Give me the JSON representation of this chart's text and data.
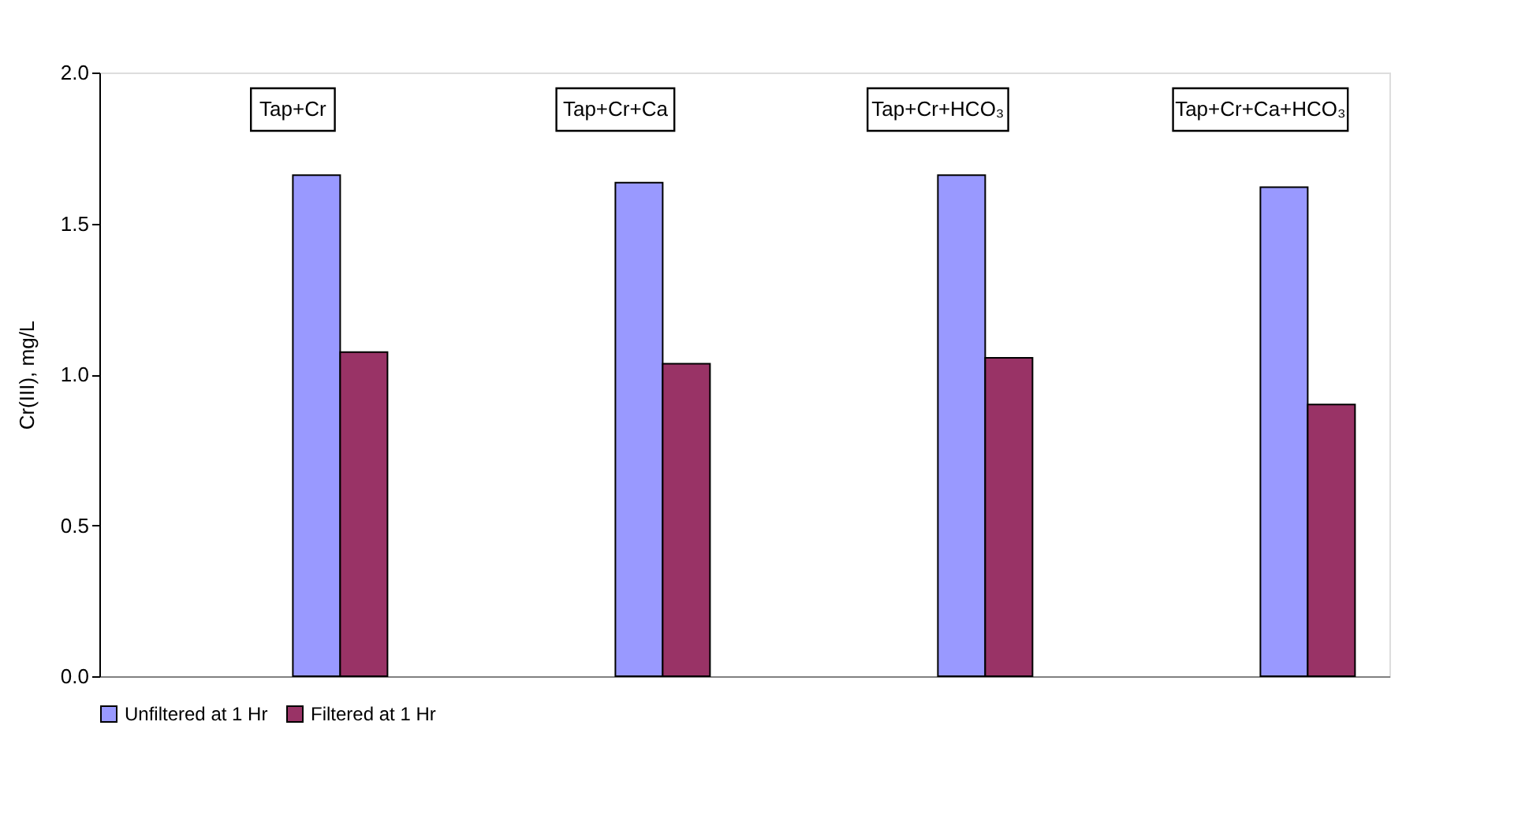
{
  "chart_data": {
    "type": "bar",
    "ylabel": "Cr(III), mg/L",
    "categories": [
      null,
      null,
      null,
      null
    ],
    "series": [
      {
        "name": "Unfiltered at 1 Hr",
        "color": "#9999ff",
        "values": [
          1.66,
          1.635,
          1.66,
          1.62
        ]
      },
      {
        "name": "Filtered at 1 Hr",
        "color": "#993366",
        "values": [
          1.074,
          1.035,
          1.055,
          0.9
        ]
      }
    ],
    "ylim": [
      0,
      2
    ],
    "yticks": [
      {
        "value": 0,
        "label": "0.0"
      },
      {
        "value": 0.5,
        "label": "0.5"
      },
      {
        "value": 1,
        "label": "1.0"
      },
      {
        "value": 1.5,
        "label": "1.5"
      },
      {
        "value": 2,
        "label": "2.0"
      }
    ],
    "annotations": [
      "Tap+Cr",
      "Tap+Cr+Ca",
      "Tap+Cr+HCO₃",
      "Tap+Cr+Ca+HCO₃"
    ],
    "grid": false,
    "legend": "bottom",
    "tick_labels": "y"
  }
}
